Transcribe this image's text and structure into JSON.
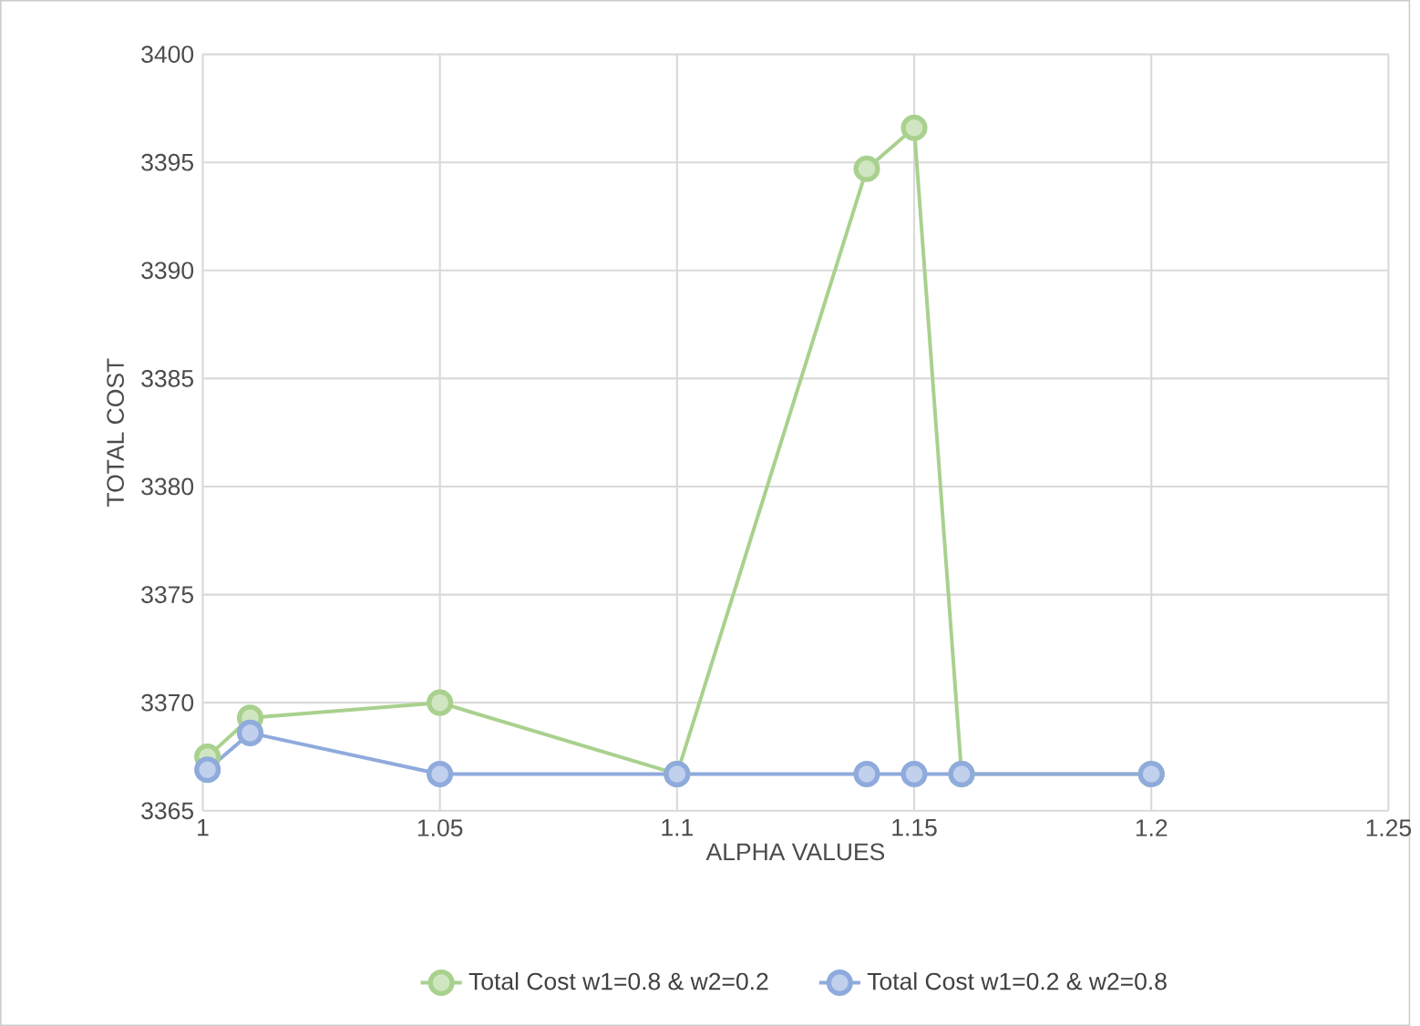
{
  "chart_data": {
    "type": "line",
    "xlabel": "ALPHA VALUES",
    "ylabel": "TOTAL COST",
    "x": [
      1.001,
      1.01,
      1.05,
      1.1,
      1.14,
      1.15,
      1.16,
      1.2
    ],
    "series": [
      {
        "name": "Total Cost w1=0.8 & w2=0.2",
        "color": "#a9d18e",
        "values": [
          3367.5,
          3369.3,
          3370,
          3366.7,
          3394.7,
          3396.6,
          3366.7,
          3366.7
        ]
      },
      {
        "name": "Total Cost w1=0.2 & w2=0.8",
        "color": "#8faadc",
        "values": [
          3366.9,
          3368.6,
          3366.7,
          3366.7,
          3366.7,
          3366.7,
          3366.7,
          3366.7
        ]
      }
    ],
    "xlim": [
      1,
      1.25
    ],
    "xticks": [
      1,
      1.05,
      1.1,
      1.15,
      1.2,
      1.25
    ],
    "ylim": [
      3365,
      3400
    ],
    "yticks": [
      3365,
      3370,
      3375,
      3380,
      3385,
      3390,
      3395,
      3400
    ],
    "grid": true,
    "legend": "bottom",
    "marker": "circle",
    "line_style": "solid"
  }
}
